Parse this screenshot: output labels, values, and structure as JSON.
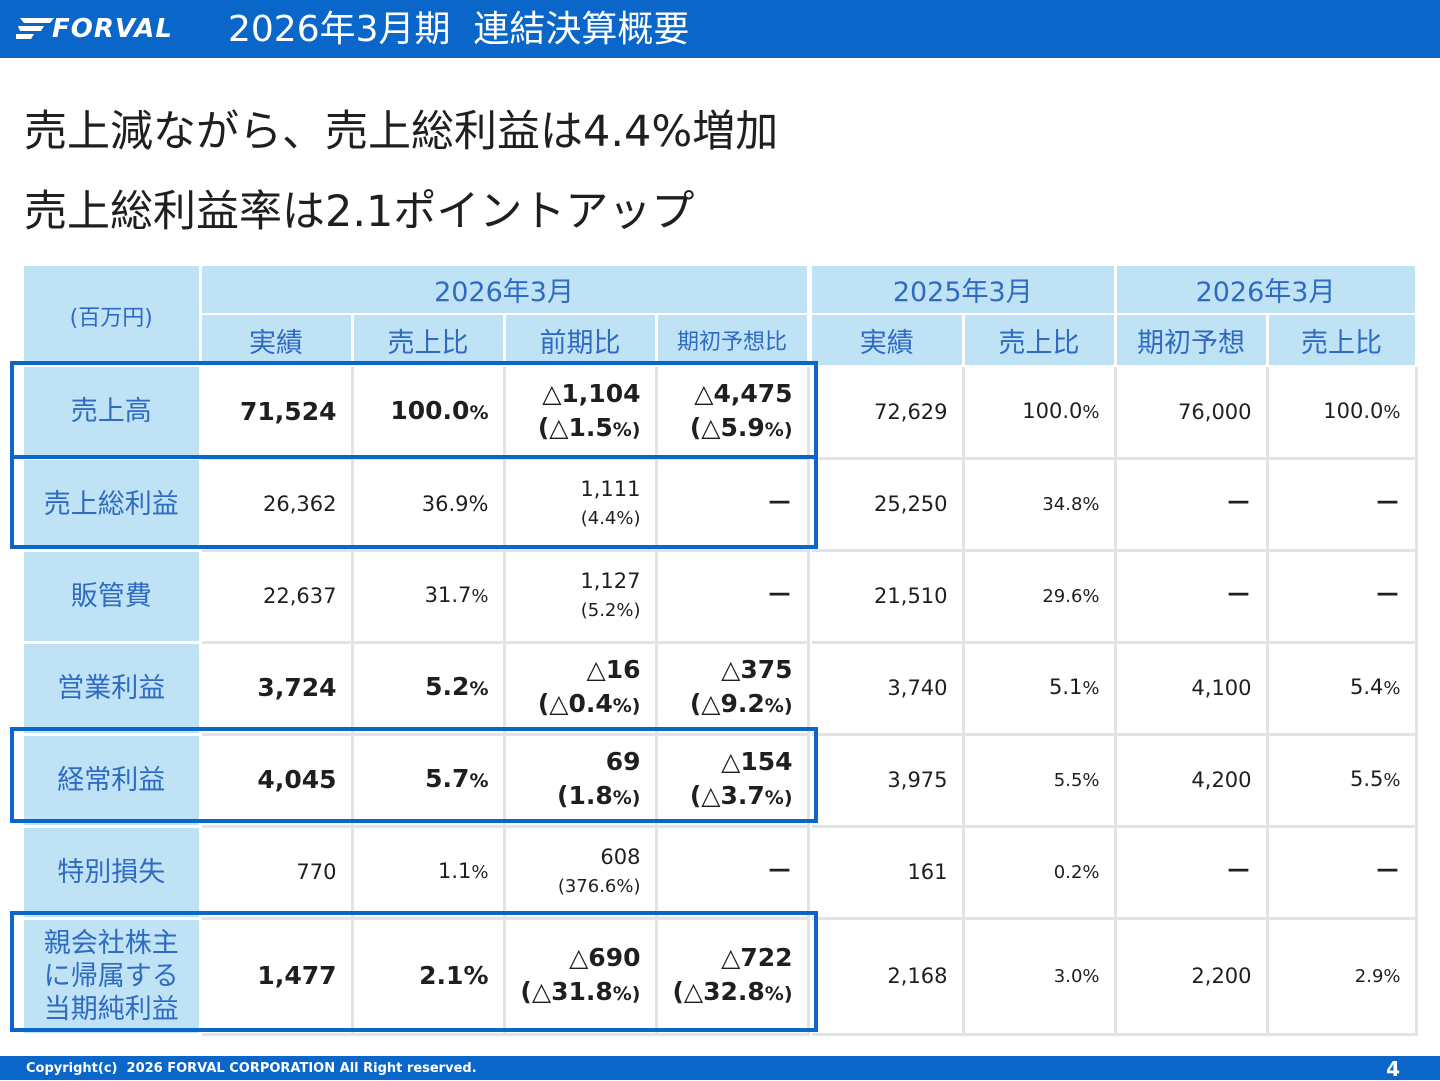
{
  "header": {
    "logo_text": "FORVAL",
    "title": "2026年3月期  連結決算概要",
    "bar_color": "#0a66c8"
  },
  "headline": {
    "line1": "売上減ながら、売上総利益は4.4%増加",
    "line2": "売上総利益率は2.1ポイントアップ"
  },
  "table": {
    "unit_label": "(百万円)",
    "groups": [
      "2026年3月",
      "2025年3月",
      "2026年3月"
    ],
    "subheaders": [
      "実績",
      "売上比",
      "前期比",
      "期初予想比",
      "実績",
      "売上比",
      "期初予想",
      "売上比"
    ],
    "rows": [
      {
        "label": "売上高",
        "actual": "71,524",
        "ratio": "100.0",
        "ratio_pct": "%",
        "yoy": "△1,104",
        "yoy_rate": "(△1.5",
        "yoy_rate_pct": "%)",
        "vs_plan": "△4,475",
        "vs_plan_rate": "(△5.9",
        "vs_plan_rate_pct": "%)",
        "prev_actual": "72,629",
        "prev_ratio": "100.0",
        "prev_ratio_pct": "%",
        "plan": "76,000",
        "plan_ratio": "100.0",
        "plan_ratio_pct": "%"
      },
      {
        "label": "売上総利益",
        "actual": "26,362",
        "ratio": "36.9%",
        "yoy": "1,111",
        "yoy_rate": "(4.4%)",
        "vs_plan": "－",
        "prev_actual": "25,250",
        "prev_ratio": "34.8%",
        "plan": "－",
        "plan_ratio": "－"
      },
      {
        "label": "販管費",
        "actual": "22,637",
        "ratio": "31.7",
        "ratio_pct": "%",
        "yoy": "1,127",
        "yoy_rate": "(5.2%)",
        "vs_plan": "－",
        "prev_actual": "21,510",
        "prev_ratio": "29.6%",
        "plan": "－",
        "plan_ratio": "－"
      },
      {
        "label": "営業利益",
        "actual": "3,724",
        "ratio": "5.2",
        "ratio_pct": "%",
        "yoy": "△16",
        "yoy_rate": "(△0.4",
        "yoy_rate_pct": "%)",
        "vs_plan": "△375",
        "vs_plan_rate": "(△9.2",
        "vs_plan_rate_pct": "%)",
        "prev_actual": "3,740",
        "prev_ratio": "5.1",
        "prev_ratio_pct": "%",
        "plan": "4,100",
        "plan_ratio": "5.4",
        "plan_ratio_pct": "%"
      },
      {
        "label": "経常利益",
        "actual": "4,045",
        "ratio": "5.7",
        "ratio_pct": "%",
        "yoy": "69",
        "yoy_rate": "(1.8",
        "yoy_rate_pct": "%)",
        "vs_plan": "△154",
        "vs_plan_rate": "(△3.7",
        "vs_plan_rate_pct": "%)",
        "prev_actual": "3,975",
        "prev_ratio": "5.5%",
        "plan": "4,200",
        "plan_ratio": "5.5",
        "plan_ratio_pct": "%"
      },
      {
        "label": "特別損失",
        "actual": "770",
        "ratio": "1.1",
        "ratio_pct": "%",
        "yoy": "608",
        "yoy_rate": "(376.6%)",
        "vs_plan": "－",
        "prev_actual": "161",
        "prev_ratio": "0.2%",
        "plan": "－",
        "plan_ratio": "－"
      },
      {
        "label_line1": "親会社株主",
        "label_line2": "に帰属する",
        "label_line3": "当期純利益",
        "actual": "1,477",
        "ratio": "2.1%",
        "yoy": "△690",
        "yoy_rate": "(△31.8",
        "yoy_rate_pct": "%)",
        "vs_plan": "△722",
        "vs_plan_rate": "(△32.8",
        "vs_plan_rate_pct": "%)",
        "prev_actual": "2,168",
        "prev_ratio": "3.0%",
        "plan": "2,200",
        "plan_ratio": "2.9%"
      }
    ]
  },
  "footer": {
    "copyright": "Copyright(c)  2026 FORVAL CORPORATION All Right reserved.",
    "page_number": "4"
  }
}
